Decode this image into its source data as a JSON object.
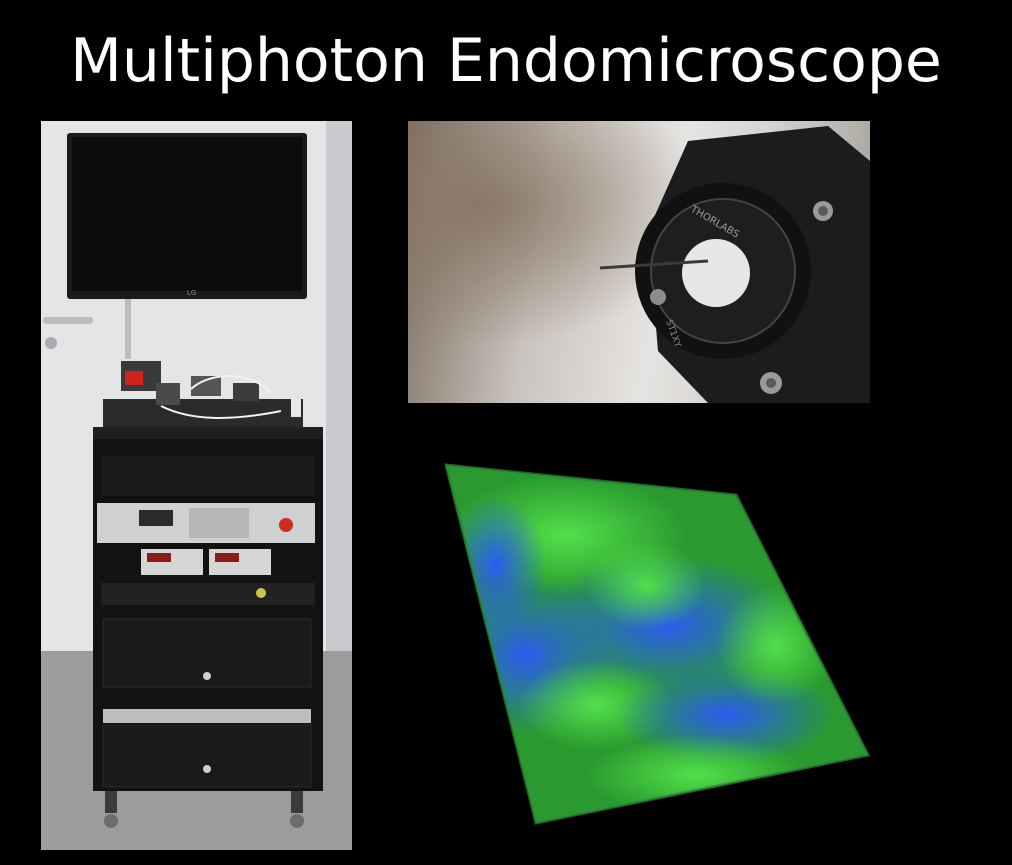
{
  "slide": {
    "title": "Multiphoton Endomicroscope"
  },
  "photos": {
    "cart": {
      "monitor_brand": "LG",
      "icon": "endomicroscope-cart-photo"
    },
    "closeup": {
      "mount_brand": "THORLABS",
      "mount_label": "ST1XY",
      "icon": "fiber-probe-closeup-photo"
    },
    "volume": {
      "icon": "3d-tissue-volume-render"
    }
  },
  "colors": {
    "background": "#000000",
    "title": "#ffffff",
    "tissue_green": "#3fcf3a",
    "tissue_blue": "#1d4fd8"
  }
}
